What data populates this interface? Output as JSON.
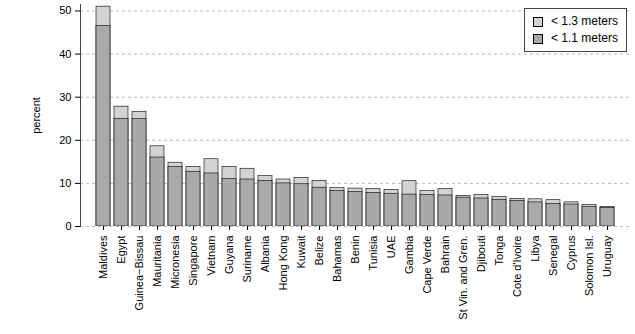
{
  "chart_data": {
    "type": "bar",
    "stacked": false,
    "y_label": "percent",
    "categories": [
      "Maldives",
      "Egypt",
      "Guinea−Bissau",
      "Mauritania",
      "Micronesia",
      "Singapore",
      "Vietnam",
      "Guyana",
      "Suriname",
      "Albania",
      "Hong Kong",
      "Kuwait",
      "Belize",
      "Bahamas",
      "Benin",
      "Tunisia",
      "UAE",
      "Gambia",
      "Cape Verde",
      "Bahrain",
      "St Vin. and Gren.",
      "Djibouti",
      "Tonga",
      "Cote d'Ivoire",
      "Libya",
      "Senegal",
      "Cyprus",
      "Solomon Isl.",
      "Uruguay"
    ],
    "series": [
      {
        "name": "< 1.3 meters",
        "color": "#d3d3d3",
        "values": [
          51,
          27.8,
          26.6,
          18.6,
          14.8,
          13.8,
          15.6,
          13.8,
          13.4,
          11.7,
          10.9,
          11.3,
          10.6,
          8.9,
          8.8,
          8.7,
          8.5,
          10.5,
          8.2,
          8.7,
          7.1,
          7.3,
          6.9,
          6.4,
          6.3,
          6.1,
          5.6,
          5.0,
          4.5
        ]
      },
      {
        "name": "< 1.1 meters",
        "color": "#a9a9a9",
        "values": [
          46.5,
          25,
          24.9,
          16,
          13.8,
          12.7,
          12.3,
          11,
          10.9,
          10.6,
          10,
          9.8,
          9,
          8.2,
          8,
          7.8,
          7.6,
          7.4,
          7.3,
          7.2,
          6.7,
          6.5,
          6.2,
          5.9,
          5.6,
          5.2,
          5.1,
          4.5,
          4.3
        ]
      }
    ],
    "ylim": [
      0,
      51.5
    ],
    "yticks": [
      0,
      10,
      20,
      30,
      40,
      50
    ],
    "grid": true,
    "legend": "top-right"
  }
}
